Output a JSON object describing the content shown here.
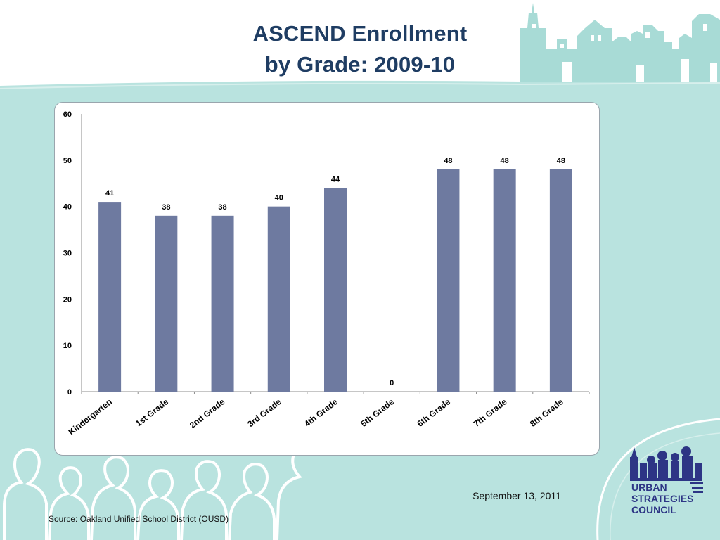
{
  "slide": {
    "title_line1": "ASCEND Enrollment",
    "title_line2": "by Grade: 2009-10",
    "date": "September 13, 2011",
    "source": "Source: Oakland Unified School District (OUSD)"
  },
  "logo": {
    "line1": "URBAN",
    "line2": "STRATEGIES",
    "line3": "COUNCIL"
  },
  "colors": {
    "bar": "#6e7aa0",
    "teal_bg": "#b9e3df",
    "teal_shape": "#a8dbd6",
    "title": "#1f3d63",
    "logo_blue": "#2d3585"
  },
  "chart_data": {
    "type": "bar",
    "title": "",
    "xlabel": "",
    "ylabel": "",
    "categories": [
      "Kindergarten",
      "1st Grade",
      "2nd Grade",
      "3rd Grade",
      "4th Grade",
      "5th Grade",
      "6th Grade",
      "7th Grade",
      "8th Grade"
    ],
    "values": [
      41,
      38,
      38,
      40,
      44,
      0,
      48,
      48,
      48
    ],
    "data_labels": [
      "41",
      "38",
      "38",
      "40",
      "44",
      "0",
      "48",
      "48",
      "48"
    ],
    "ylim": [
      0,
      60
    ],
    "yticks": [
      0,
      10,
      20,
      30,
      40,
      50,
      60
    ],
    "grid": false,
    "legend": "none"
  }
}
